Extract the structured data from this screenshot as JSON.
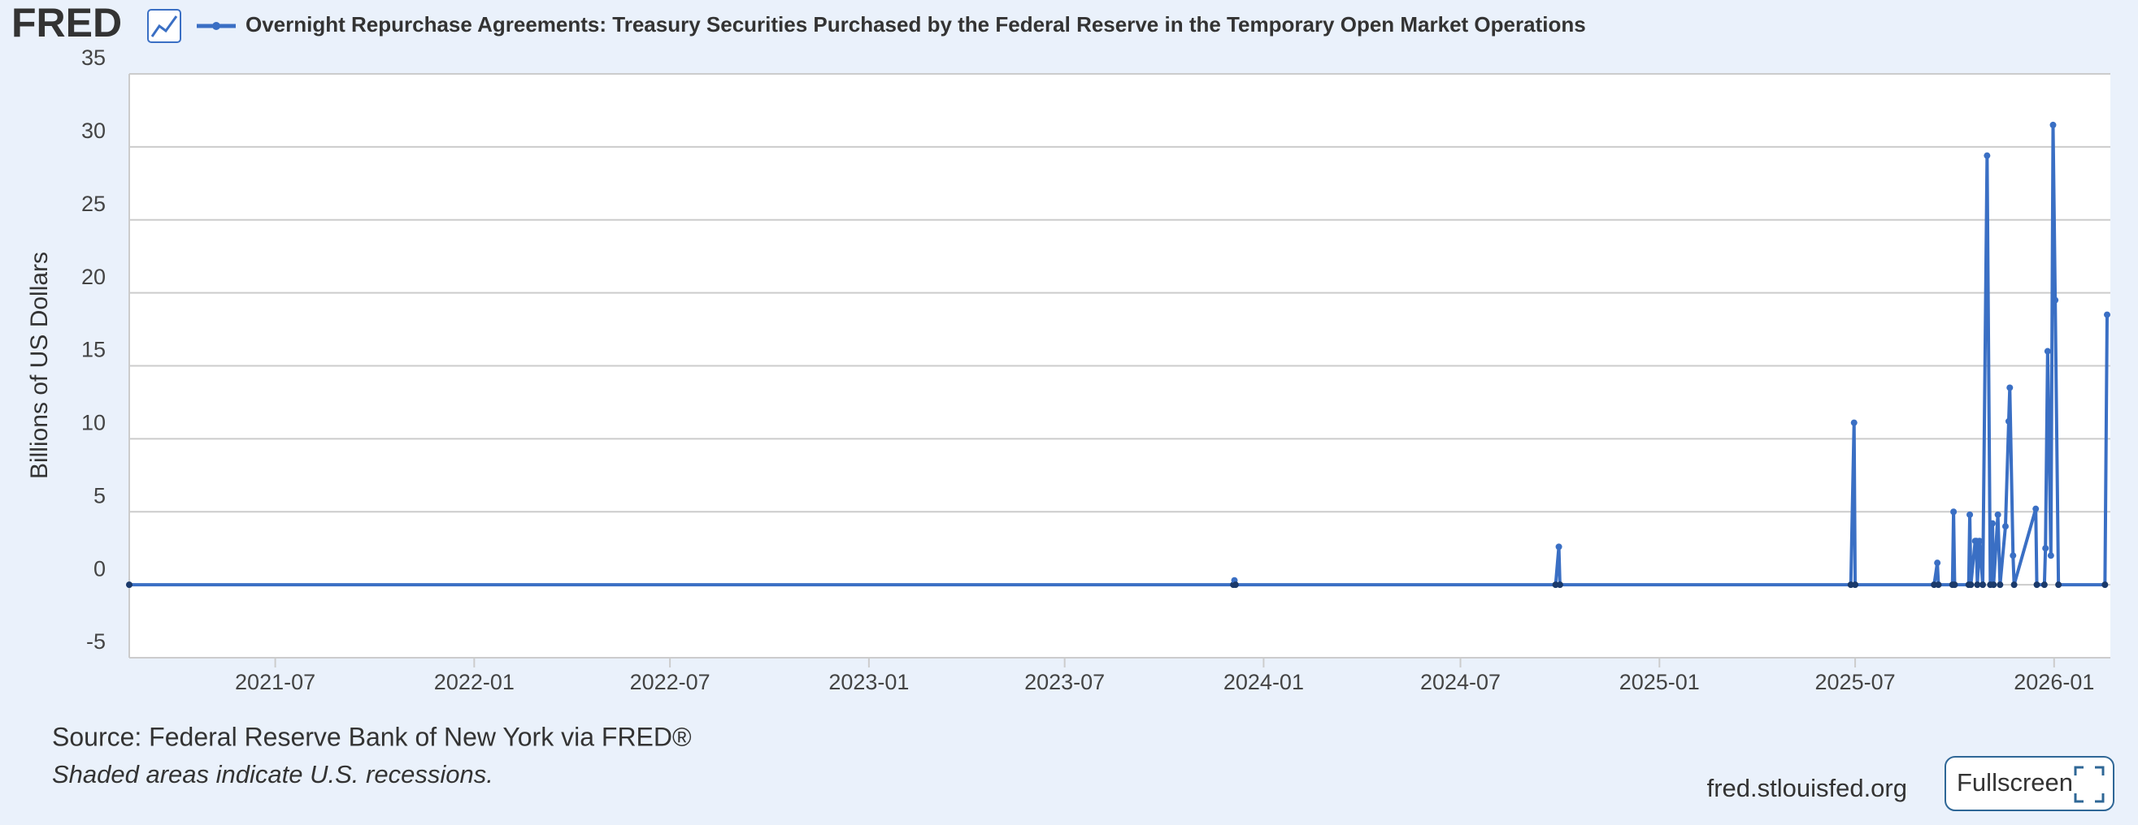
{
  "logo": "FRED",
  "chart_data": {
    "type": "line",
    "y_label": "Billions of US Dollars",
    "series": [
      {
        "name": "Overnight Repurchase Agreements: Treasury Securities Purchased by the Federal Reserve in the Temporary Open Market Operations",
        "color": "#3a6fc4",
        "values": [
          0,
          0,
          0.3,
          0,
          0,
          2.6,
          0,
          0,
          11.1,
          0,
          0,
          1.5,
          0,
          0,
          5.0,
          0,
          0,
          4.8,
          0,
          3.0,
          3.0,
          0,
          3.0,
          0,
          29.4,
          0,
          4.2,
          0,
          4.8,
          0,
          4.0,
          11.2,
          13.5,
          2.0,
          0,
          5.2,
          0,
          0,
          2.5,
          16.0,
          2.0,
          31.5,
          19.5,
          0,
          0,
          18.5
        ]
      }
    ],
    "x": [
      "2021-02-16",
      "2023-12-04",
      "2023-12-05",
      "2023-12-06",
      "2024-09-27",
      "2024-09-30",
      "2024-10-01",
      "2025-06-27",
      "2025-06-30",
      "2025-07-01",
      "2025-09-12",
      "2025-09-15",
      "2025-09-16",
      "2025-09-29",
      "2025-09-30",
      "2025-10-01",
      "2025-10-14",
      "2025-10-15",
      "2025-10-16",
      "2025-10-20",
      "2025-10-21",
      "2025-10-22",
      "2025-10-24",
      "2025-10-27",
      "2025-10-31",
      "2025-11-03",
      "2025-11-05",
      "2025-11-06",
      "2025-11-10",
      "2025-11-12",
      "2025-11-17",
      "2025-11-20",
      "2025-11-21",
      "2025-11-24",
      "2025-11-25",
      "2025-12-15",
      "2025-12-16",
      "2025-12-23",
      "2025-12-24",
      "2025-12-26",
      "2025-12-29",
      "2025-12-31",
      "2026-01-02",
      "2026-01-05",
      "2026-02-17",
      "2026-02-19"
    ],
    "xlim": [
      "2021-02-16",
      "2026-02-22"
    ],
    "xticks": [
      {
        "value": "2021-07-01",
        "label": "2021-07"
      },
      {
        "value": "2022-01-01",
        "label": "2022-01"
      },
      {
        "value": "2022-07-01",
        "label": "2022-07"
      },
      {
        "value": "2023-01-01",
        "label": "2023-01"
      },
      {
        "value": "2023-07-01",
        "label": "2023-07"
      },
      {
        "value": "2024-01-01",
        "label": "2024-01"
      },
      {
        "value": "2024-07-01",
        "label": "2024-07"
      },
      {
        "value": "2025-01-01",
        "label": "2025-01"
      },
      {
        "value": "2025-07-01",
        "label": "2025-07"
      },
      {
        "value": "2026-01-01",
        "label": "2026-01"
      }
    ],
    "ylim": [
      -5,
      35
    ],
    "yticks": [
      -5,
      0,
      5,
      10,
      15,
      20,
      25,
      30,
      35
    ],
    "grid": true
  },
  "source": "Source: Federal Reserve Bank of New York via FRED®",
  "note": "Shaded areas indicate U.S. recessions.",
  "website": "fred.stlouisfed.org",
  "button": "Fullscreen"
}
